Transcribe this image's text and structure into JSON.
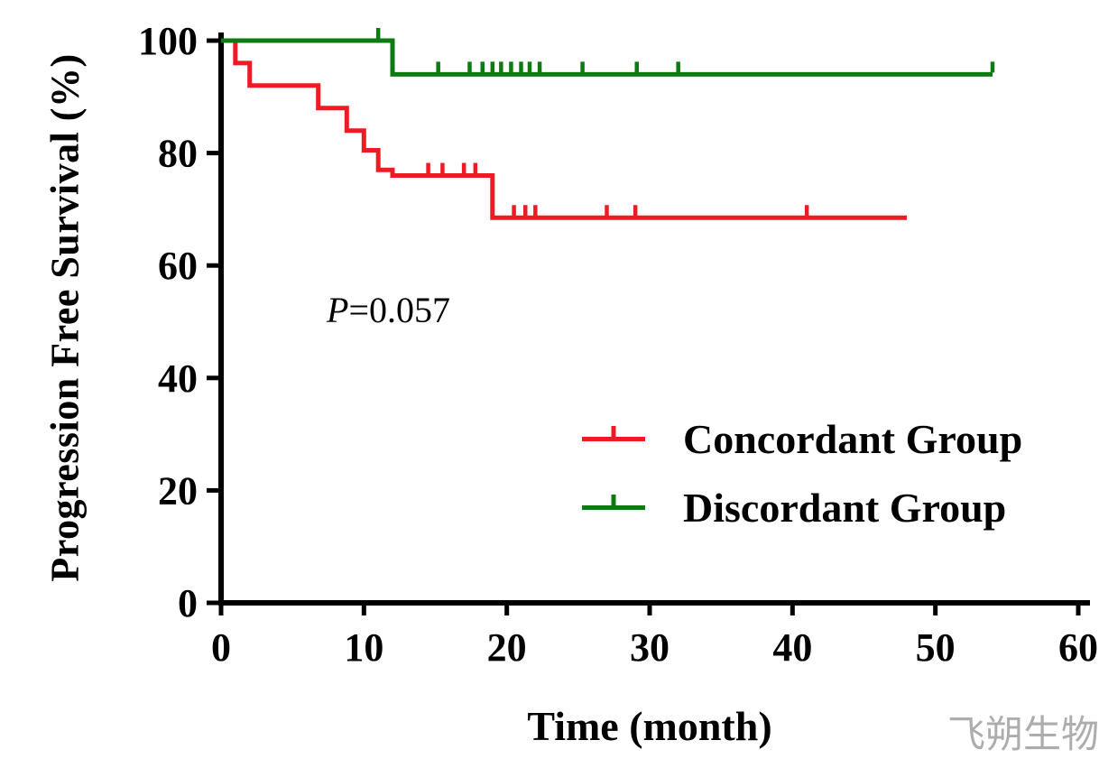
{
  "chart_data": {
    "type": "line",
    "subtype": "kaplan-meier-step",
    "title": "",
    "xlabel": "Time (month)",
    "ylabel": "Progression Free Survival (%)",
    "xlim": [
      0,
      60
    ],
    "ylim": [
      0,
      100
    ],
    "xticks": [
      0,
      10,
      20,
      30,
      40,
      50,
      60
    ],
    "yticks": [
      0,
      20,
      40,
      60,
      80,
      100
    ],
    "grid": false,
    "legend_position": "right-center",
    "annotation": {
      "symbol": "P",
      "value": "=0.057"
    },
    "series": [
      {
        "name": "Concordant Group",
        "color": "#ed1c24",
        "steps": [
          [
            0,
            100
          ],
          [
            1,
            100
          ],
          [
            1,
            96
          ],
          [
            2,
            96
          ],
          [
            2,
            92
          ],
          [
            6.8,
            92
          ],
          [
            6.8,
            88
          ],
          [
            8.8,
            88
          ],
          [
            8.8,
            84
          ],
          [
            10,
            84
          ],
          [
            10,
            80.5
          ],
          [
            11,
            80.5
          ],
          [
            11,
            77
          ],
          [
            12,
            77
          ],
          [
            12,
            76
          ],
          [
            19,
            76
          ],
          [
            19,
            68.5
          ],
          [
            48,
            68.5
          ]
        ],
        "censor_marks": [
          [
            14.5,
            76
          ],
          [
            15.5,
            76
          ],
          [
            17,
            76
          ],
          [
            17.8,
            76
          ],
          [
            20.5,
            68.5
          ],
          [
            21.3,
            68.5
          ],
          [
            22,
            68.5
          ],
          [
            27,
            68.5
          ],
          [
            29,
            68.5
          ],
          [
            41,
            68.5
          ]
        ]
      },
      {
        "name": "Discordant Group",
        "color": "#0e7a12",
        "steps": [
          [
            0,
            100
          ],
          [
            12,
            100
          ],
          [
            12,
            94
          ],
          [
            54,
            94
          ]
        ],
        "censor_marks": [
          [
            11,
            100
          ],
          [
            15.2,
            94
          ],
          [
            17.4,
            94
          ],
          [
            18.3,
            94
          ],
          [
            19,
            94
          ],
          [
            19.6,
            94
          ],
          [
            20.3,
            94
          ],
          [
            21,
            94
          ],
          [
            21.6,
            94
          ],
          [
            22.3,
            94
          ],
          [
            25.3,
            94
          ],
          [
            29.1,
            94
          ],
          [
            32,
            94
          ],
          [
            54,
            94
          ]
        ]
      }
    ]
  },
  "watermark": {
    "text": "飞朔生物"
  }
}
